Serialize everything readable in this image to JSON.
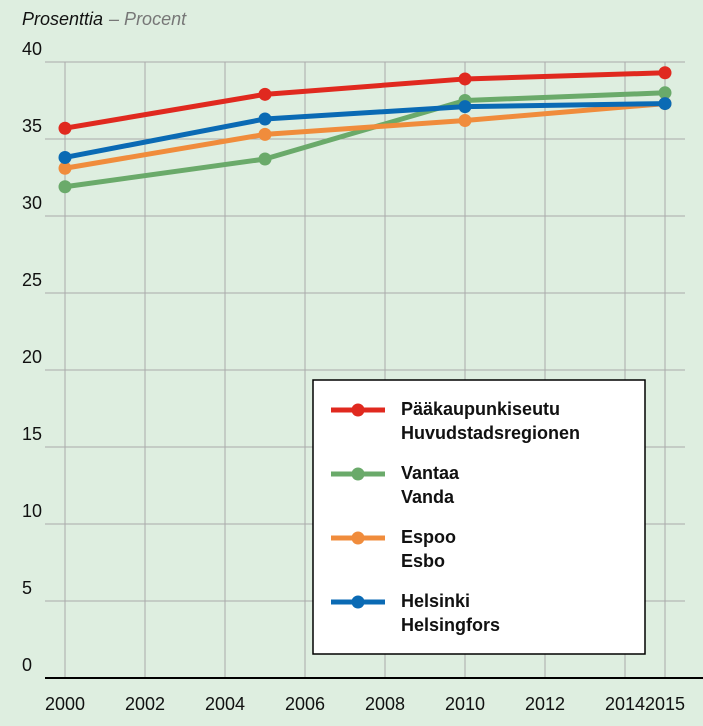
{
  "chart_data": {
    "type": "line",
    "y_label": "Prosenttia",
    "y_label_sv": "– Procent",
    "x": [
      2000,
      2005,
      2010,
      2015
    ],
    "xlim": [
      2000,
      2015
    ],
    "xticks": [
      2000,
      2002,
      2004,
      2006,
      2008,
      2010,
      2012,
      2014,
      2015
    ],
    "ylim": [
      0,
      40
    ],
    "yticks": [
      0,
      5,
      10,
      15,
      20,
      25,
      30,
      35,
      40
    ],
    "grid": true,
    "legend": "lower right",
    "series": [
      {
        "name": "Pääkaupunkiseutu",
        "name_sv": "Huvudstadsregionen",
        "color": "#e0291f",
        "values": [
          35.7,
          37.9,
          38.9,
          39.3
        ]
      },
      {
        "name": "Vantaa",
        "name_sv": "Vanda",
        "color": "#6aaa6a",
        "values": [
          31.9,
          33.7,
          37.5,
          38.0
        ]
      },
      {
        "name": "Espoo",
        "name_sv": "Esbo",
        "color": "#f08c3c",
        "values": [
          33.1,
          35.3,
          36.2,
          37.3
        ]
      },
      {
        "name": "Helsinki",
        "name_sv": "Helsingfors",
        "color": "#0a6ab4",
        "values": [
          33.8,
          36.3,
          37.1,
          37.3
        ]
      }
    ]
  }
}
